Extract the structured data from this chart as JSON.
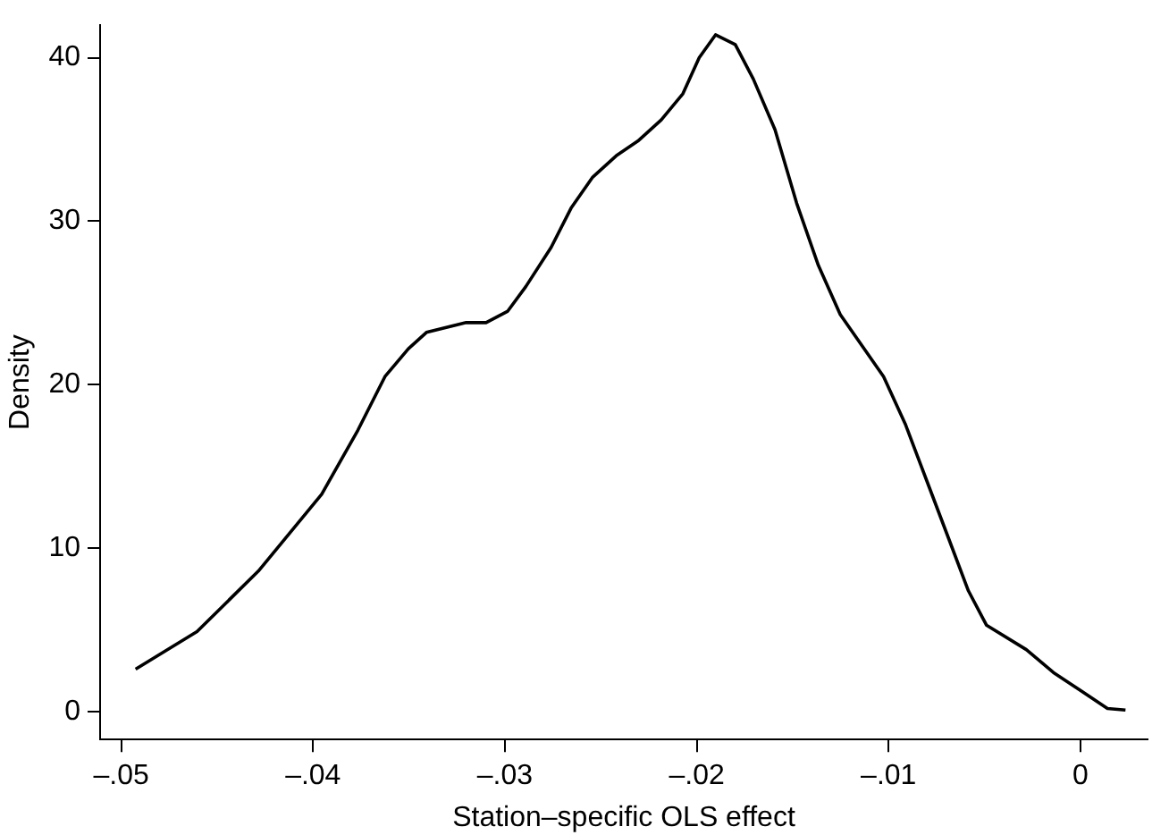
{
  "chart_data": {
    "type": "line",
    "xlabel": "Station–specific OLS effect",
    "ylabel": "Density",
    "x": [
      -0.04925,
      -0.04605,
      -0.04285,
      -0.03955,
      -0.03767,
      -0.03625,
      -0.03503,
      -0.03409,
      -0.03202,
      -0.03098,
      -0.02985,
      -0.02891,
      -0.02759,
      -0.02655,
      -0.02542,
      -0.0242,
      -0.02307,
      -0.02185,
      -0.02072,
      -0.01987,
      -0.01902,
      -0.01799,
      -0.01705,
      -0.01592,
      -0.01479,
      -0.01366,
      -0.01252,
      -0.01139,
      -0.01026,
      -0.00913,
      -0.008,
      -0.00687,
      -0.00584,
      -0.0049,
      -0.00282,
      -0.00141,
      0,
      0.00141,
      0.00235
    ],
    "series": [
      {
        "color": "#000000",
        "values": [
          2.6,
          4.9,
          8.6,
          13.3,
          17.2,
          20.5,
          22.2,
          23.2,
          23.8,
          23.8,
          24.5,
          26.0,
          28.4,
          30.8,
          32.7,
          34.0,
          34.9,
          36.2,
          37.8,
          40.0,
          41.4,
          40.8,
          38.7,
          35.6,
          31.1,
          27.3,
          24.3,
          22.4,
          20.5,
          17.6,
          14.1,
          10.6,
          7.4,
          5.3,
          3.8,
          2.4,
          1.3,
          0.2,
          0.1
        ]
      }
    ],
    "xlim": [
      -0.0511,
      0.0035
    ],
    "ylim": [
      -1.7,
      42
    ],
    "xticks": [
      {
        "value": -0.05,
        "label": "–.05"
      },
      {
        "value": -0.04,
        "label": "–.04"
      },
      {
        "value": -0.03,
        "label": "–.03"
      },
      {
        "value": -0.02,
        "label": "–.02"
      },
      {
        "value": -0.01,
        "label": "–.01"
      },
      0
    ],
    "yticks": [
      0,
      10,
      20,
      30,
      40
    ],
    "grid": false,
    "legend": false,
    "marker": "none",
    "line_style": "solid"
  }
}
